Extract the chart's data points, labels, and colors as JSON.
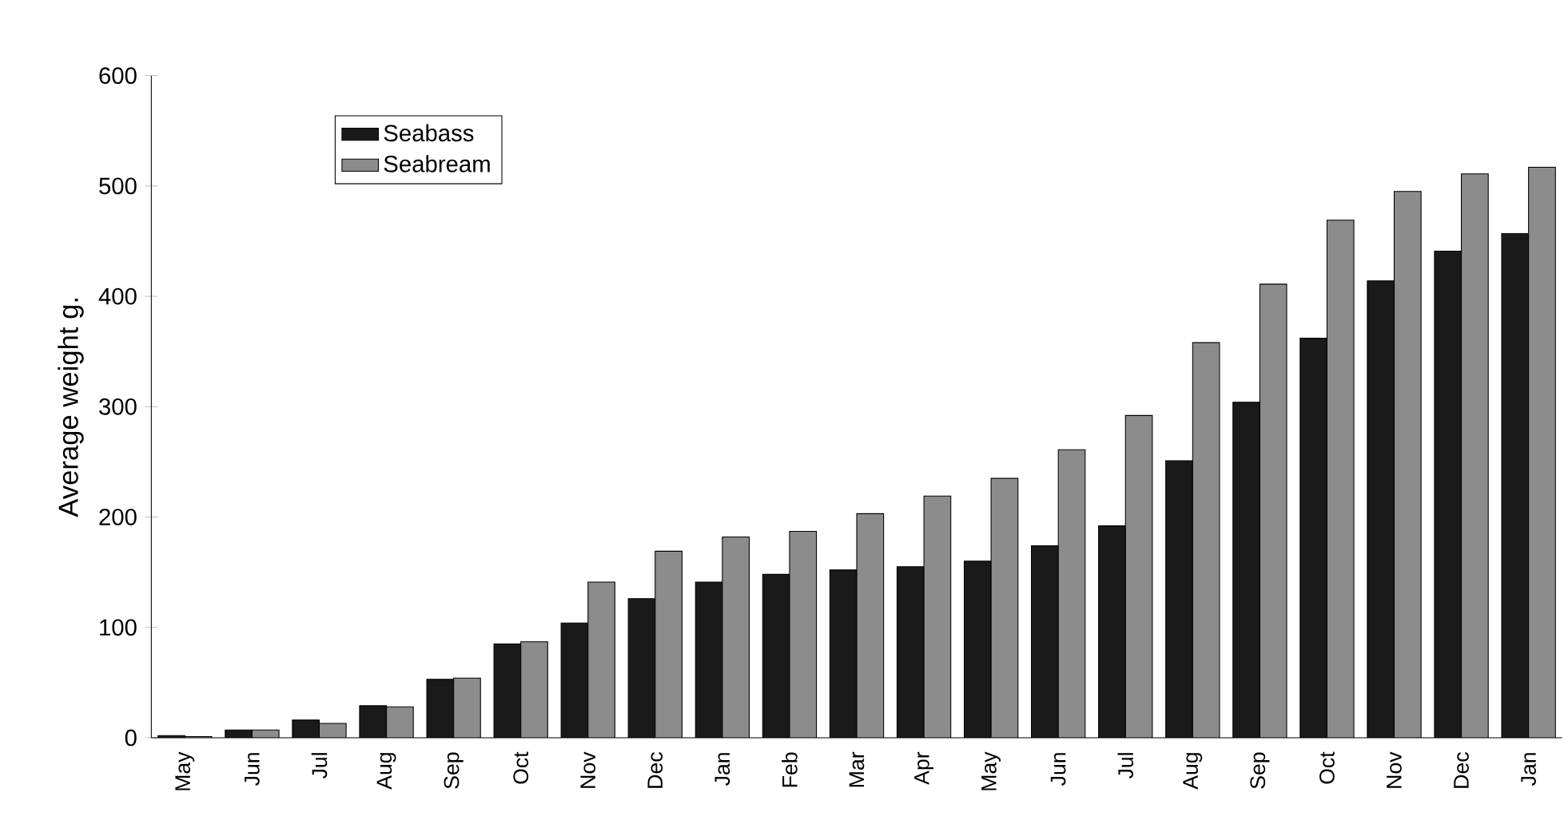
{
  "chart_data": {
    "type": "bar",
    "ylabel": "Average weight g.",
    "categories": [
      "May",
      "Jun",
      "Jul",
      "Aug",
      "Sep",
      "Oct",
      "Nov",
      "Dec",
      "Jan",
      "Feb",
      "Mar",
      "Apr",
      "May",
      "Jun",
      "Jul",
      "Aug",
      "Sep",
      "Oct",
      "Nov",
      "Dec",
      "Jan"
    ],
    "series": [
      {
        "name": "Seabass",
        "color": "#1a1a1a",
        "values": [
          2,
          7,
          16,
          29,
          53,
          85,
          104,
          126,
          141,
          148,
          152,
          155,
          160,
          174,
          192,
          251,
          304,
          362,
          414,
          441,
          457
        ]
      },
      {
        "name": "Seabream",
        "color": "#8c8c8c",
        "values": [
          1,
          7,
          13,
          28,
          54,
          87,
          141,
          169,
          182,
          187,
          203,
          219,
          235,
          261,
          292,
          358,
          411,
          469,
          495,
          511,
          517
        ]
      }
    ],
    "ylim": [
      0,
      600
    ],
    "yticks": [
      0,
      100,
      200,
      300,
      400,
      500,
      600
    ],
    "grid": false,
    "legend": "top left"
  }
}
